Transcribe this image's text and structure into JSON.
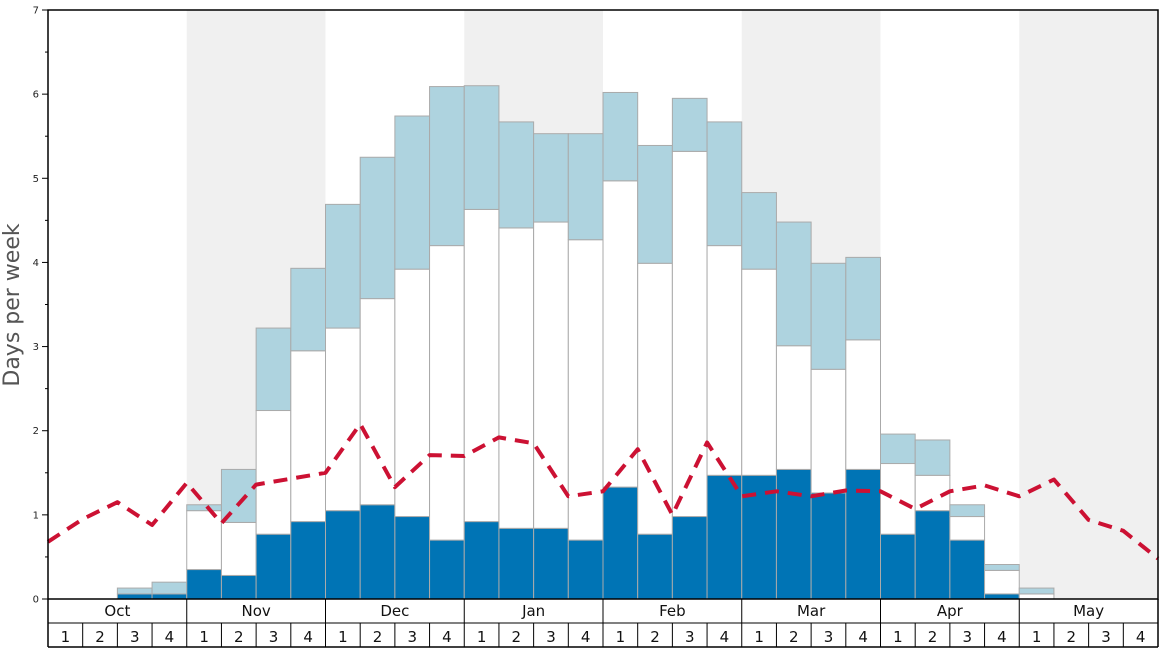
{
  "chart_data": {
    "type": "bar",
    "title": "",
    "xlabel": "",
    "ylabel": "Days per week",
    "ylim": [
      0,
      7
    ],
    "y_ticks": [
      0,
      1,
      2,
      3,
      4,
      5,
      6,
      7
    ],
    "stacked": true,
    "grid": false,
    "months": [
      "Oct",
      "Nov",
      "Dec",
      "Jan",
      "Feb",
      "Mar",
      "Apr",
      "May"
    ],
    "weeks_per_month": [
      "1",
      "2",
      "3",
      "4"
    ],
    "shaded_months": [
      "Nov",
      "Jan",
      "Mar",
      "May"
    ],
    "colors": {
      "bottom": "#0074b5",
      "middle": "#ffffff",
      "top": "#aed3df",
      "line": "#cc1133",
      "shade": "#f0f0f0",
      "bar_edge": "#aaaaaa"
    },
    "series": [
      {
        "name": "dark blue segment",
        "values": [
          0,
          0,
          0.06,
          0.06,
          0.35,
          0.28,
          0.77,
          0.92,
          1.05,
          1.12,
          0.98,
          0.7,
          0.92,
          0.84,
          0.84,
          0.7,
          1.33,
          0.77,
          0.98,
          1.47,
          1.47,
          1.54,
          1.26,
          1.54,
          0.77,
          1.05,
          0.7,
          0.06,
          0,
          0,
          0,
          0
        ]
      },
      {
        "name": "white segment",
        "values": [
          0,
          0,
          0,
          0,
          0.7,
          0.63,
          1.47,
          2.03,
          2.17,
          2.45,
          2.94,
          3.5,
          3.71,
          3.57,
          3.64,
          3.57,
          3.64,
          3.22,
          4.34,
          2.73,
          2.45,
          1.47,
          1.47,
          1.54,
          0.84,
          0.42,
          0.28,
          0.28,
          0.06,
          0,
          0,
          0
        ]
      },
      {
        "name": "light blue segment",
        "values": [
          0,
          0,
          0.07,
          0.14,
          0.07,
          0.63,
          0.98,
          0.98,
          1.47,
          1.68,
          1.82,
          1.89,
          1.47,
          1.26,
          1.05,
          1.26,
          1.05,
          1.4,
          0.63,
          1.47,
          0.91,
          1.47,
          1.26,
          0.98,
          0.35,
          0.42,
          0.14,
          0.07,
          0.07,
          0,
          0,
          0
        ]
      }
    ],
    "line_series": {
      "name": "red dashed line",
      "values": [
        0.68,
        0.95,
        1.15,
        0.88,
        1.38,
        0.9,
        1.36,
        1.43,
        1.5,
        2.08,
        1.33,
        1.71,
        1.7,
        1.92,
        1.85,
        1.22,
        1.28,
        1.78,
        1.0,
        1.86,
        1.22,
        1.28,
        1.22,
        1.29,
        1.28,
        1.07,
        1.28,
        1.35,
        1.22,
        1.42,
        0.94,
        0.81,
        0.48
      ]
    }
  }
}
